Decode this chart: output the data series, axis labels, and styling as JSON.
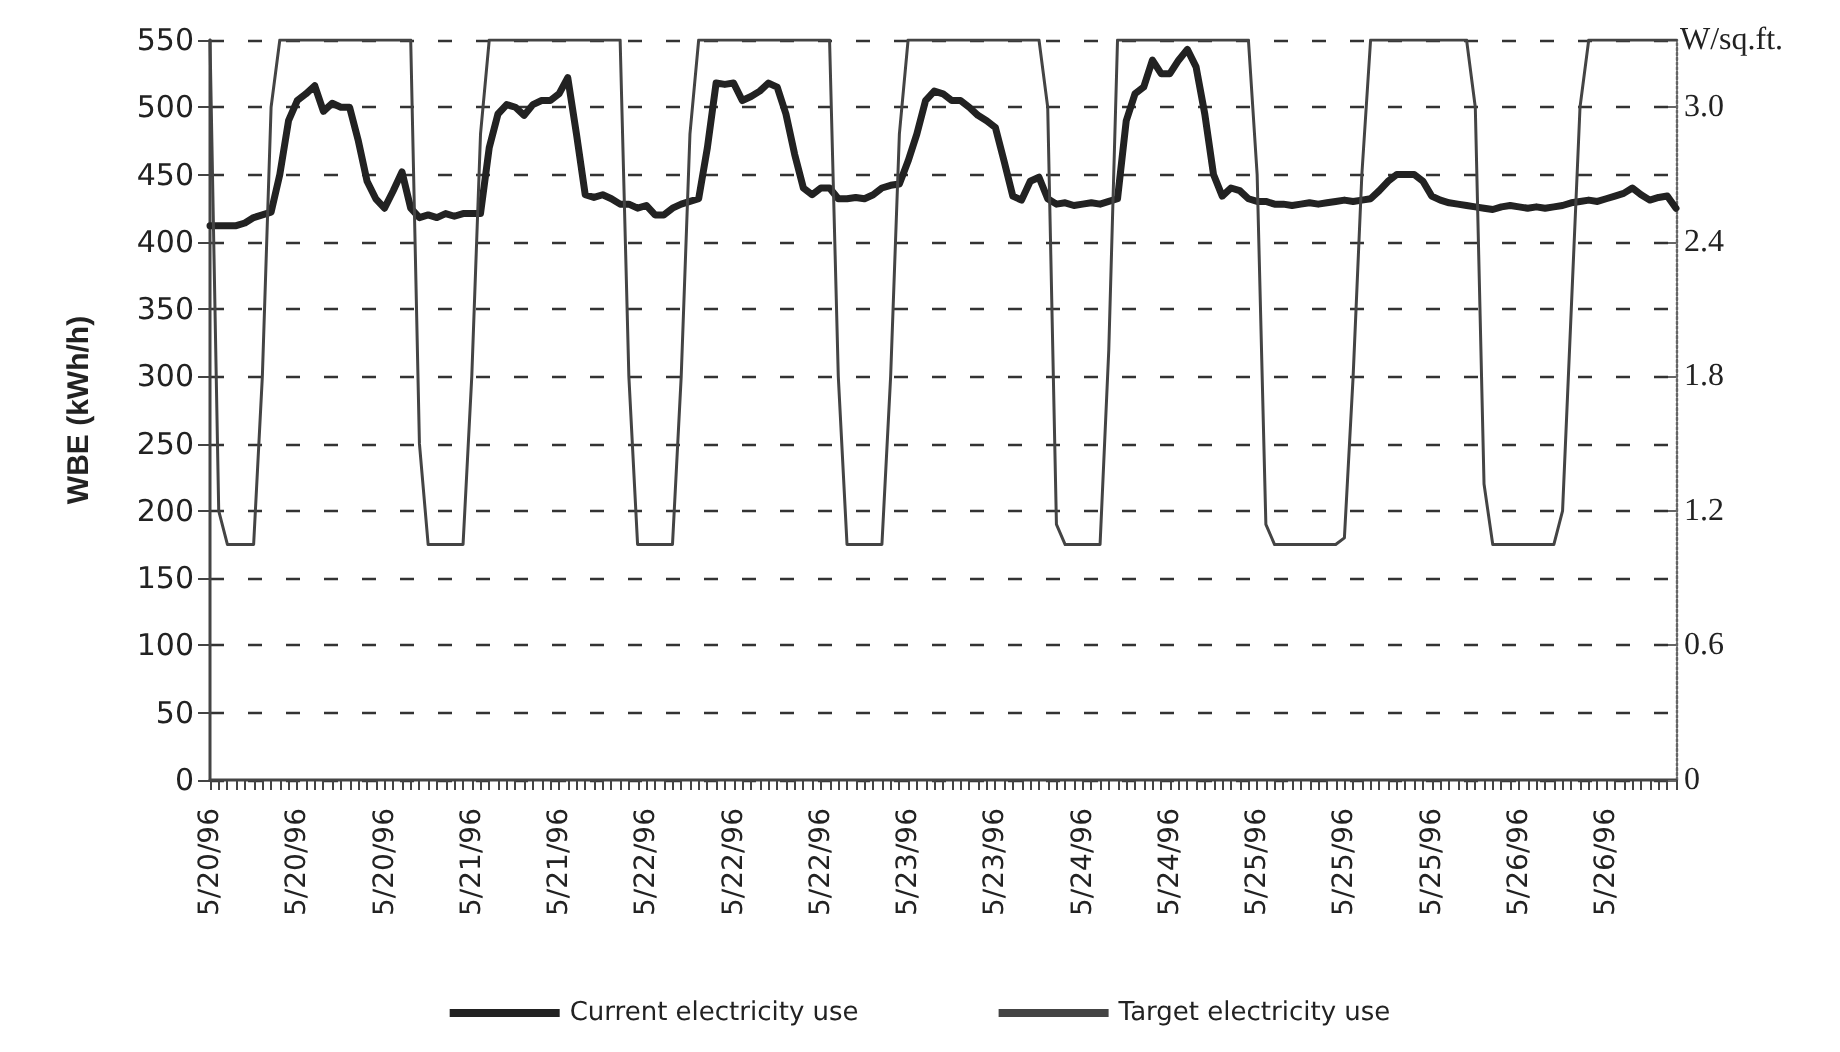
{
  "chart_data": {
    "type": "line",
    "ylabel": "WBE (kWh/h)",
    "y2label": "W/sq.ft.",
    "categories": [
      "5/20/96",
      null,
      null,
      null,
      null,
      null,
      null,
      null,
      null,
      null,
      "5/20/96",
      null,
      null,
      null,
      null,
      null,
      null,
      null,
      null,
      null,
      "5/20/96",
      null,
      null,
      null,
      null,
      null,
      null,
      null,
      null,
      null,
      "5/21/96",
      null,
      null,
      null,
      null,
      null,
      null,
      null,
      null,
      null,
      "5/21/96",
      null,
      null,
      null,
      null,
      null,
      null,
      null,
      null,
      null,
      "5/22/96",
      null,
      null,
      null,
      null,
      null,
      null,
      null,
      null,
      null,
      "5/22/96",
      null,
      null,
      null,
      null,
      null,
      null,
      null,
      null,
      null,
      "5/22/96",
      null,
      null,
      null,
      null,
      null,
      null,
      null,
      null,
      null,
      "5/23/96",
      null,
      null,
      null,
      null,
      null,
      null,
      null,
      null,
      null,
      "5/23/96",
      null,
      null,
      null,
      null,
      null,
      null,
      null,
      null,
      null,
      "5/24/96",
      null,
      null,
      null,
      null,
      null,
      null,
      null,
      null,
      null,
      "5/24/96",
      null,
      null,
      null,
      null,
      null,
      null,
      null,
      null,
      null,
      "5/25/96",
      null,
      null,
      null,
      null,
      null,
      null,
      null,
      null,
      null,
      "5/25/96",
      null,
      null,
      null,
      null,
      null,
      null,
      null,
      null,
      null,
      "5/25/96",
      null,
      null,
      null,
      null,
      null,
      null,
      null,
      null,
      null,
      "5/26/96",
      null,
      null,
      null,
      null,
      null,
      null,
      null,
      null,
      null,
      "5/26/96",
      null,
      null,
      null,
      null,
      null,
      null,
      null,
      null
    ],
    "series": [
      {
        "name": "Current electricity use",
        "color": "#222222",
        "values": [
          412,
          412,
          412,
          412,
          414,
          418,
          420,
          422,
          450,
          490,
          505,
          510,
          516,
          497,
          503,
          500,
          500,
          475,
          445,
          432,
          425,
          438,
          452,
          425,
          418,
          420,
          418,
          421,
          419,
          421,
          421,
          421,
          470,
          495,
          502,
          500,
          494,
          502,
          505,
          505,
          510,
          522,
          480,
          435,
          433,
          435,
          432,
          428,
          428,
          425,
          427,
          420,
          420,
          425,
          428,
          430,
          432,
          470,
          518,
          517,
          518,
          505,
          508,
          512,
          518,
          515,
          495,
          465,
          440,
          435,
          440,
          440,
          432,
          432,
          433,
          432,
          435,
          440,
          442,
          443,
          460,
          480,
          505,
          512,
          510,
          505,
          505,
          500,
          494,
          490,
          485,
          460,
          434,
          431,
          445,
          448,
          432,
          428,
          429,
          427,
          428,
          429,
          428,
          430,
          432,
          490,
          510,
          515,
          535,
          525,
          525,
          535,
          543,
          530,
          495,
          450,
          434,
          440,
          438,
          432,
          430,
          430,
          428,
          428,
          427,
          428,
          429,
          428,
          429,
          430,
          431,
          430,
          431,
          432,
          438,
          445,
          450,
          450,
          450,
          445,
          434,
          431,
          429,
          428,
          427,
          426,
          425,
          424,
          426,
          427,
          426,
          425,
          426,
          425,
          426,
          427,
          429,
          430,
          431,
          430,
          432,
          434,
          436,
          440,
          435,
          431,
          433,
          434,
          425
        ]
      },
      {
        "name": "Target electricity use",
        "color": "#444444",
        "values": [
          550,
          200,
          175,
          175,
          175,
          175,
          300,
          500,
          550,
          550,
          550,
          550,
          550,
          550,
          550,
          550,
          550,
          550,
          550,
          550,
          550,
          550,
          550,
          550,
          250,
          175,
          175,
          175,
          175,
          175,
          300,
          480,
          550,
          550,
          550,
          550,
          550,
          550,
          550,
          550,
          550,
          550,
          550,
          550,
          550,
          550,
          550,
          550,
          300,
          175,
          175,
          175,
          175,
          175,
          300,
          480,
          550,
          550,
          550,
          550,
          550,
          550,
          550,
          550,
          550,
          550,
          550,
          550,
          550,
          550,
          550,
          550,
          300,
          175,
          175,
          175,
          175,
          175,
          300,
          480,
          550,
          550,
          550,
          550,
          550,
          550,
          550,
          550,
          550,
          550,
          550,
          550,
          550,
          550,
          550,
          550,
          500,
          190,
          175,
          175,
          175,
          175,
          175,
          320,
          550,
          550,
          550,
          550,
          550,
          550,
          550,
          550,
          550,
          550,
          550,
          550,
          550,
          550,
          550,
          550,
          450,
          190,
          175,
          175,
          175,
          175,
          175,
          175,
          175,
          175,
          180,
          300,
          450,
          550,
          550,
          550,
          550,
          550,
          550,
          550,
          550,
          550,
          550,
          550,
          550,
          500,
          220,
          175,
          175,
          175,
          175,
          175,
          175,
          175,
          175,
          200,
          350,
          500,
          550,
          550,
          550,
          550,
          550,
          550,
          550,
          550,
          550,
          550,
          550
        ]
      }
    ],
    "ylim": [
      0,
      550
    ],
    "yticks": [
      0,
      50,
      100,
      150,
      200,
      250,
      300,
      350,
      400,
      450,
      500,
      550
    ],
    "y2lim": [
      0,
      3.3
    ],
    "y2ticks": [
      0,
      0.6,
      1.2,
      1.8,
      2.4,
      {
        "value": 3,
        "label": "3.0"
      }
    ],
    "grid": "y",
    "legend": "bottom",
    "marker": "none",
    "line_style": "solid"
  }
}
